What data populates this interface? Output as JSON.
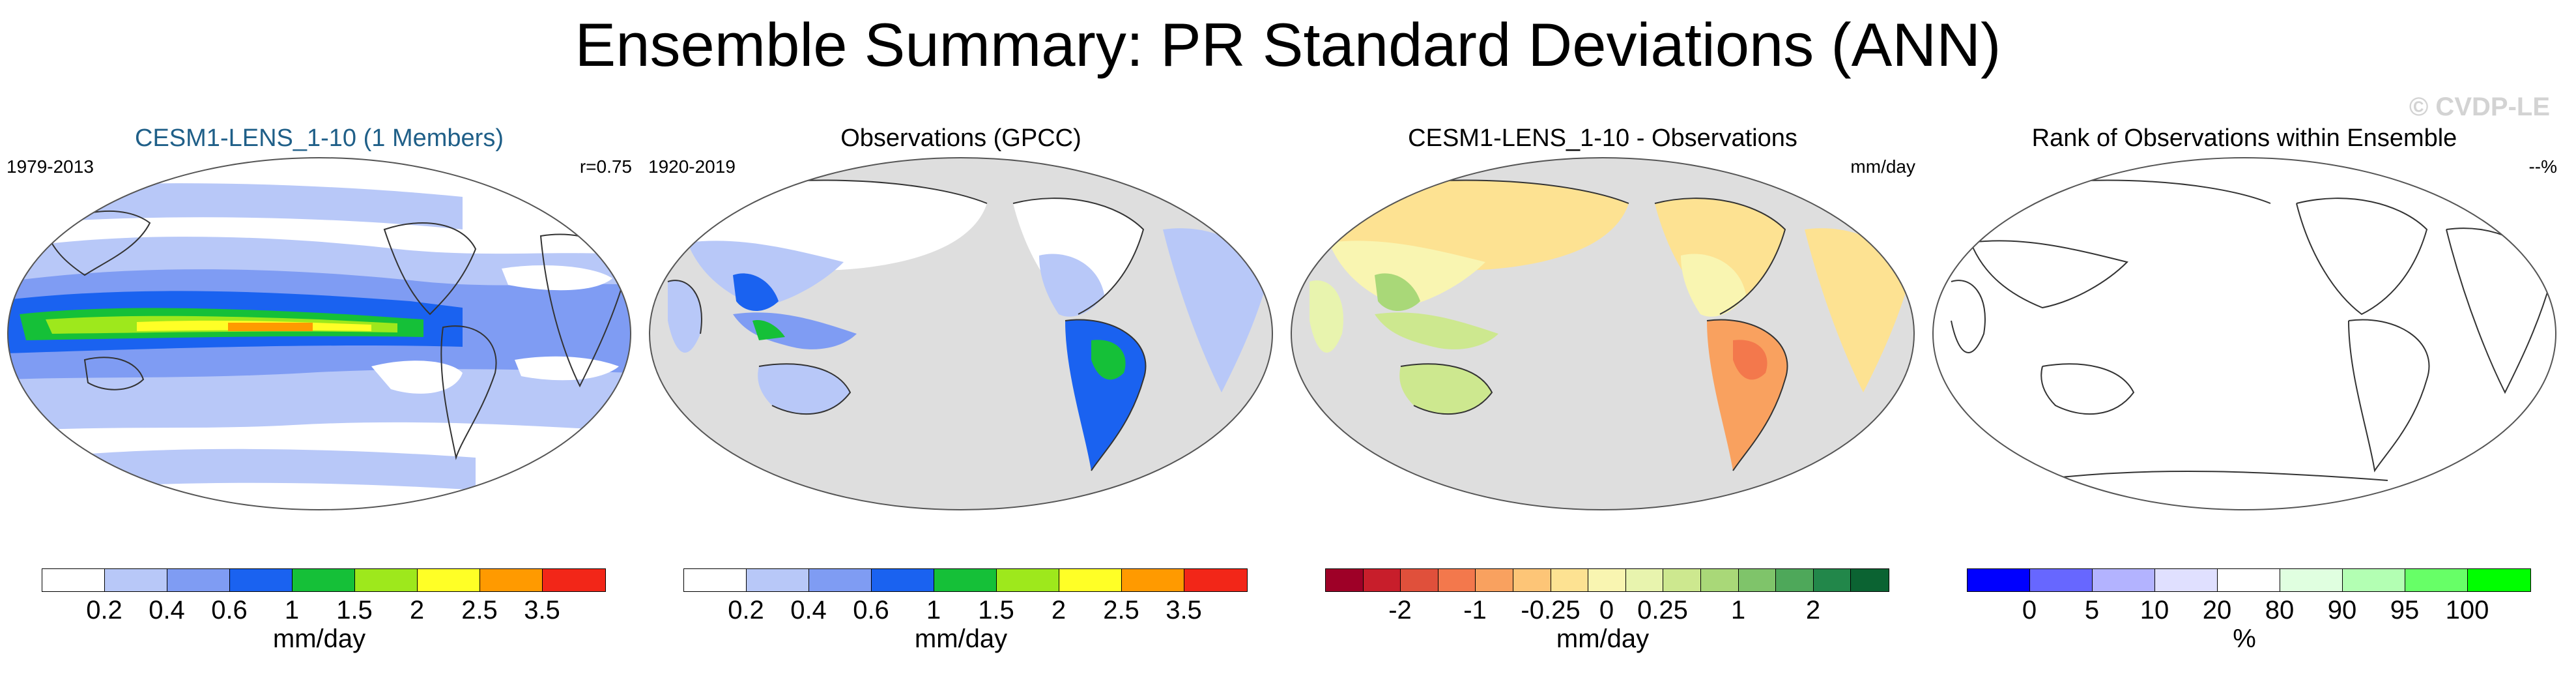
{
  "header": {
    "title": "Ensemble Summary: PR Standard Deviations (ANN)",
    "watermark": "© CVDP-LE"
  },
  "colors": {
    "ocean_gray": "#dedede",
    "land_outline": "#333333",
    "sequential": [
      "#ffffff",
      "#b8c8f8",
      "#7f9cf3",
      "#1a62f0",
      "#15c038",
      "#9ee81c",
      "#ffff26",
      "#ff9a00",
      "#f22618"
    ],
    "diverging": [
      "#9e0027",
      "#c81e2b",
      "#e0503b",
      "#f3784c",
      "#f9a15f",
      "#fdc577",
      "#fde292",
      "#f9f5b1",
      "#e8f4ae",
      "#cde88f",
      "#a9d878",
      "#7fc46a",
      "#4ea85a",
      "#22874a",
      "#0b6332"
    ],
    "rank": [
      "#0000ff",
      "#6767ff",
      "#b3b3ff",
      "#e0e0ff",
      "#ffffff",
      "#e0ffe0",
      "#b3ffb3",
      "#67ff67",
      "#00ff00"
    ]
  },
  "panels": [
    {
      "title": "CESM1-LENS_1-10 (1 Members)",
      "title_color": "#1f5f88",
      "left_label": "1979-2013",
      "right_label": "r=0.75",
      "map_type": "model-std",
      "colorbar": {
        "ticks": [
          "0.2",
          "0.4",
          "0.6",
          "1",
          "1.5",
          "2",
          "2.5",
          "3.5"
        ],
        "unit": "mm/day"
      }
    },
    {
      "title": "Observations (GPCC)",
      "title_color": "#000000",
      "left_label": "1920-2019",
      "right_label": "",
      "map_type": "obs-std",
      "colorbar": {
        "ticks": [
          "0.2",
          "0.4",
          "0.6",
          "1",
          "1.5",
          "2",
          "2.5",
          "3.5"
        ],
        "unit": "mm/day"
      }
    },
    {
      "title": "CESM1-LENS_1-10 - Observations",
      "title_color": "#000000",
      "left_label": "",
      "right_label": "mm/day",
      "map_type": "difference",
      "colorbar": {
        "ticks": [
          "-2",
          "-1",
          "-0.25",
          "0",
          "0.25",
          "1",
          "2"
        ],
        "unit": "mm/day"
      }
    },
    {
      "title": "Rank of Observations within Ensemble",
      "title_color": "#000000",
      "left_label": "",
      "right_label": "--%",
      "map_type": "rank",
      "colorbar": {
        "ticks": [
          "0",
          "5",
          "10",
          "20",
          "80",
          "90",
          "95",
          "100"
        ],
        "unit": "%"
      }
    }
  ]
}
